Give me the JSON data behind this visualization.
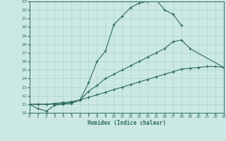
{
  "xlabel": "Humidex (Indice chaleur)",
  "bg_color": "#cce8e4",
  "grid_color": "#aad4cf",
  "line_color": "#2d6b60",
  "xlim": [
    0,
    23
  ],
  "ylim": [
    10,
    23
  ],
  "xticks": [
    0,
    1,
    2,
    3,
    4,
    5,
    6,
    7,
    8,
    9,
    10,
    11,
    12,
    13,
    14,
    15,
    16,
    17,
    18,
    19,
    20,
    21,
    22,
    23
  ],
  "yticks": [
    10,
    11,
    12,
    13,
    14,
    15,
    16,
    17,
    18,
    19,
    20,
    21,
    22,
    23
  ],
  "line1_x": [
    0,
    1,
    2,
    3,
    4,
    5,
    6,
    7,
    8,
    9,
    10,
    11,
    12,
    13,
    14,
    15,
    16,
    17,
    18
  ],
  "line1_y": [
    11,
    10.5,
    10.2,
    10.9,
    11.0,
    11.1,
    11.5,
    13.5,
    16.0,
    17.2,
    20.3,
    21.3,
    22.3,
    22.8,
    23.0,
    23.2,
    22.0,
    21.5,
    20.2
  ],
  "line2_x": [
    0,
    1,
    2,
    3,
    4,
    5,
    6,
    7,
    8,
    9,
    10,
    11,
    12,
    13,
    14,
    15,
    16,
    17,
    18,
    19,
    23
  ],
  "line2_y": [
    11,
    11.0,
    11.0,
    11.0,
    11.1,
    11.2,
    11.5,
    12.5,
    13.2,
    14.0,
    14.5,
    15.0,
    15.5,
    16.0,
    16.5,
    17.0,
    17.5,
    18.3,
    18.5,
    17.5,
    15.3
  ],
  "line3_x": [
    0,
    1,
    2,
    3,
    4,
    5,
    6,
    7,
    8,
    9,
    10,
    11,
    12,
    13,
    14,
    15,
    16,
    17,
    18,
    19,
    20,
    21,
    22,
    23
  ],
  "line3_y": [
    11,
    11.0,
    11.0,
    11.1,
    11.2,
    11.3,
    11.5,
    11.8,
    12.1,
    12.4,
    12.7,
    13.0,
    13.3,
    13.6,
    13.9,
    14.2,
    14.5,
    14.8,
    15.1,
    15.2,
    15.3,
    15.4,
    15.4,
    15.3
  ]
}
